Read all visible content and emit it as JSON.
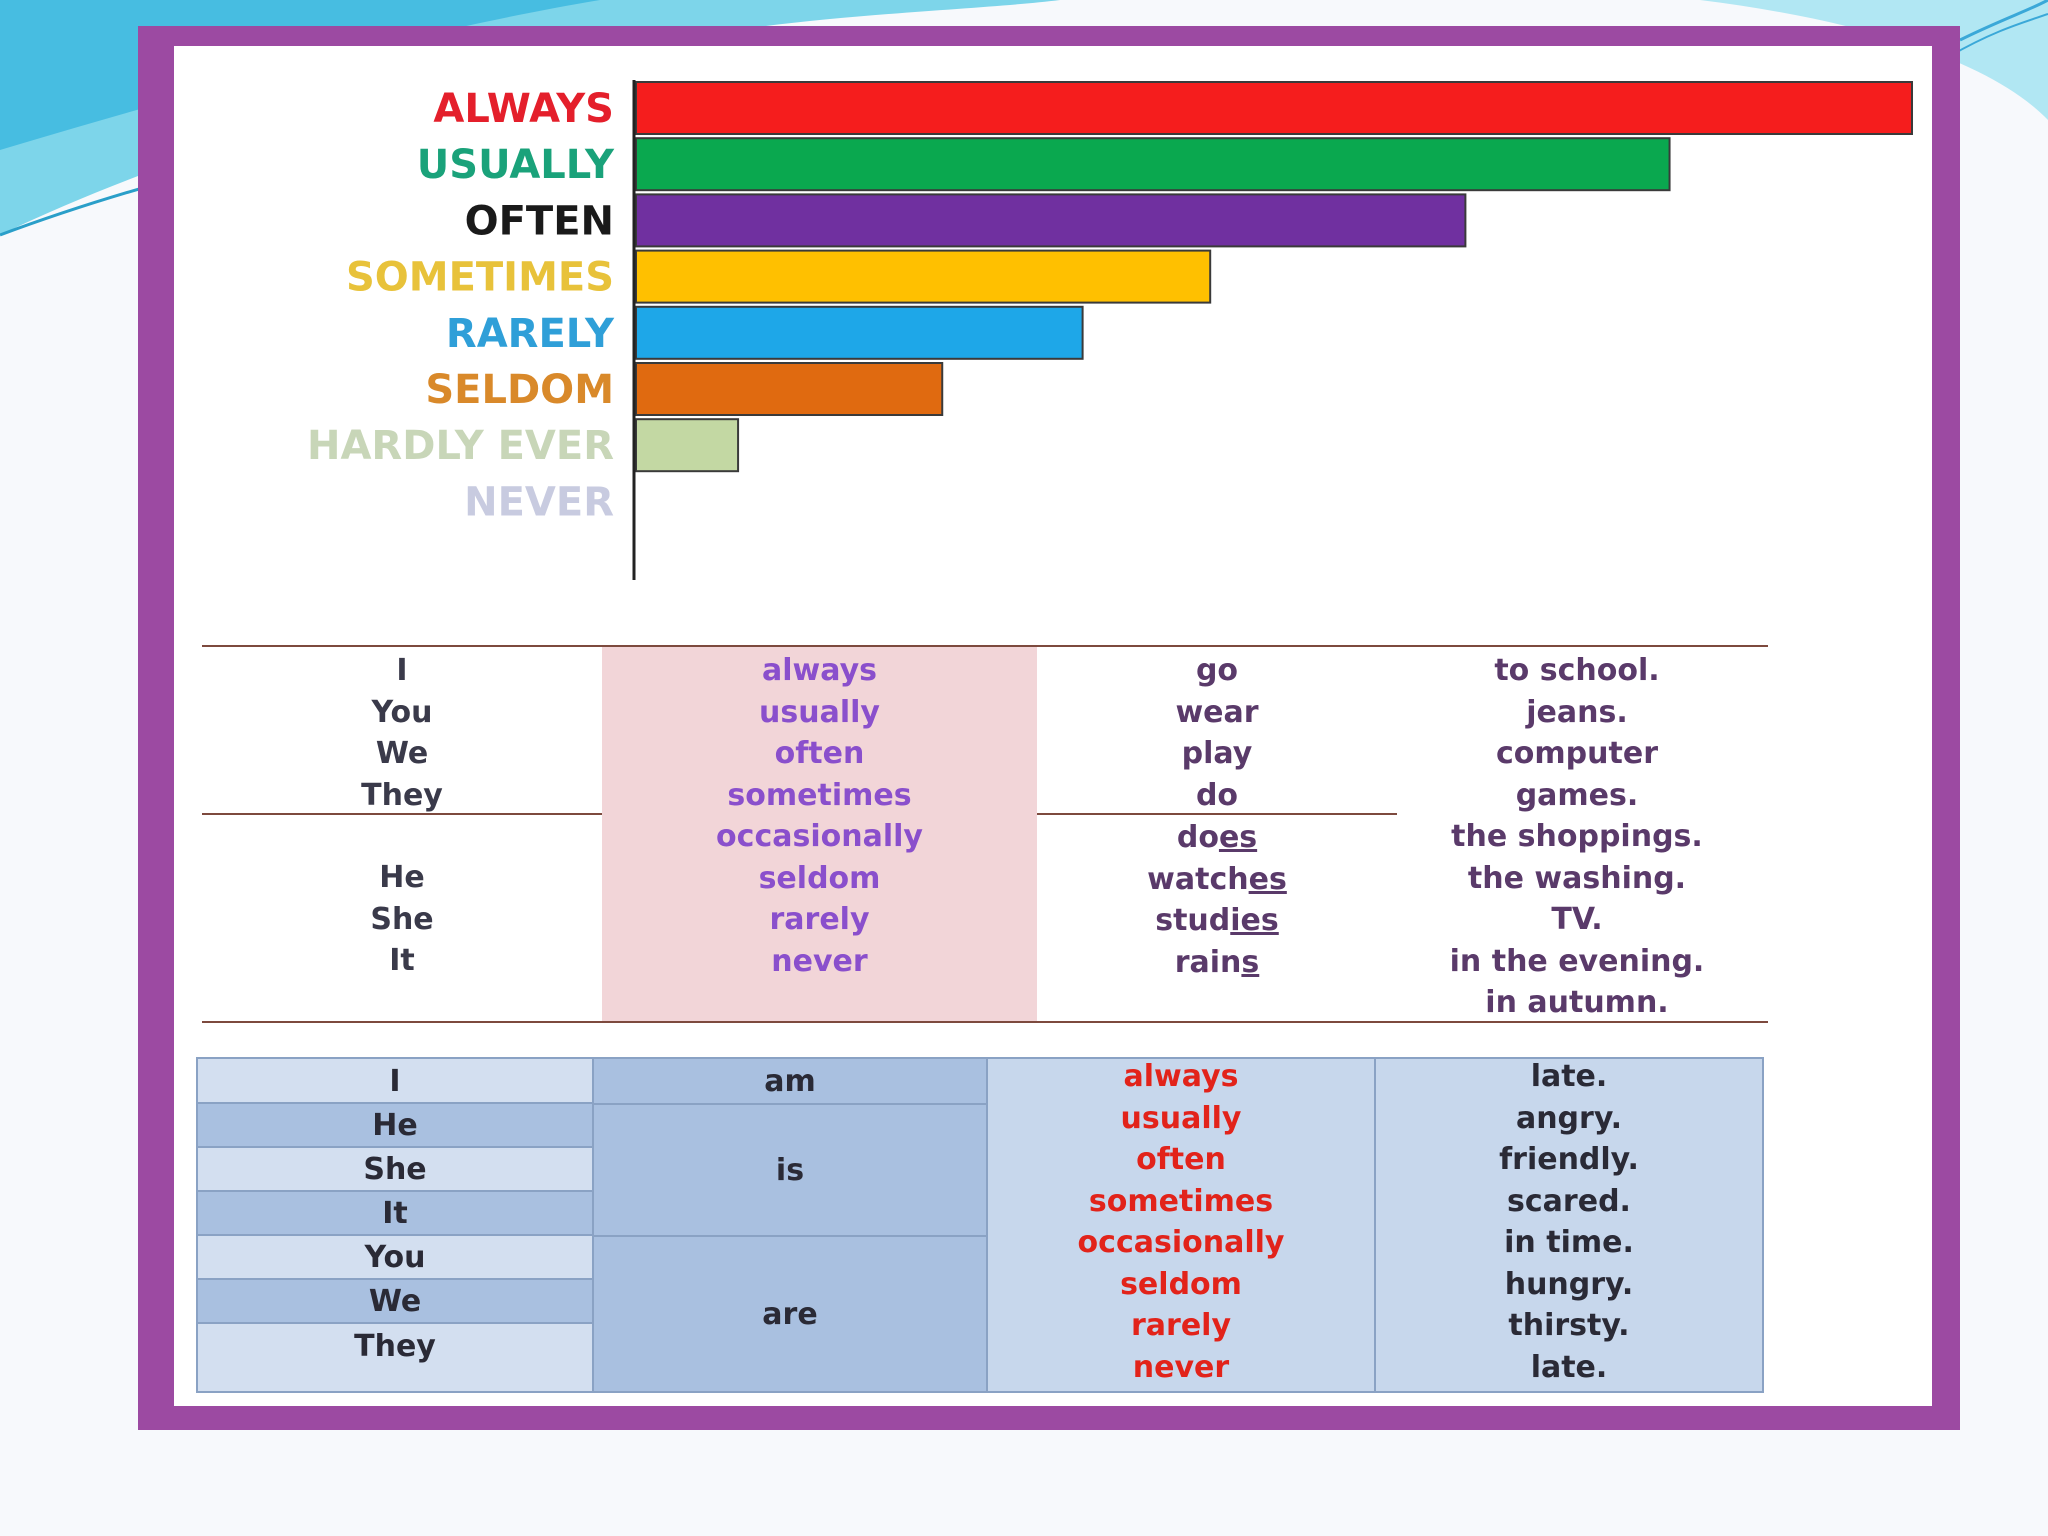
{
  "chart_data": {
    "type": "bar",
    "orientation": "horizontal",
    "categories": [
      "ALWAYS",
      "USUALLY",
      "OFTEN",
      "SOMETIMES",
      "RARELY",
      "SELDOM",
      "HARDLY EVER",
      "NEVER"
    ],
    "values": [
      100,
      81,
      65,
      45,
      35,
      24,
      8,
      0
    ],
    "colors": [
      "#f51d1d",
      "#0aa84f",
      "#7030a0",
      "#ffc000",
      "#1ea7e8",
      "#e06a10",
      "#c3d8a3",
      "#ffffff"
    ],
    "label_colors": [
      "#e41f2b",
      "#1aa27a",
      "#1a1a1a",
      "#e8c23a",
      "#2f9fd8",
      "#d9892a",
      "#c8d6b8",
      "#c8cbe0"
    ],
    "xlim": [
      0,
      100
    ],
    "grid": false,
    "legend": false
  },
  "table1": {
    "subjects_plural": [
      "I",
      "You",
      "We",
      "They"
    ],
    "subjects_singular": [
      "He",
      "She",
      "It"
    ],
    "adverbs": [
      "always",
      "usually",
      "often",
      "sometimes",
      "occasionally",
      "seldom",
      "rarely",
      "never"
    ],
    "verbs_plural": [
      "go",
      "wear",
      "play",
      "do"
    ],
    "verbs_singular": [
      {
        "stem": "do",
        "ending": "es"
      },
      {
        "stem": "watch",
        "ending": "es"
      },
      {
        "stem": "stud",
        "ending": "ies"
      },
      {
        "stem": "rain",
        "ending": "s"
      }
    ],
    "objects": [
      "to school.",
      "jeans.",
      "computer",
      "games.",
      "the shoppings.",
      "the washing.",
      "TV.",
      "in the evening.",
      "in autumn."
    ]
  },
  "table2": {
    "subjects": [
      "I",
      "He",
      "She",
      "It",
      "You",
      "We",
      "They"
    ],
    "be_forms": [
      "am",
      "is",
      "are"
    ],
    "adverbs": [
      "always",
      "usually",
      "often",
      "sometimes",
      "occasionally",
      "seldom",
      "rarely",
      "never"
    ],
    "predicates": [
      "late.",
      "angry.",
      "friendly.",
      "scared.",
      "in time.",
      "hungry.",
      "thirsty.",
      "late."
    ]
  }
}
